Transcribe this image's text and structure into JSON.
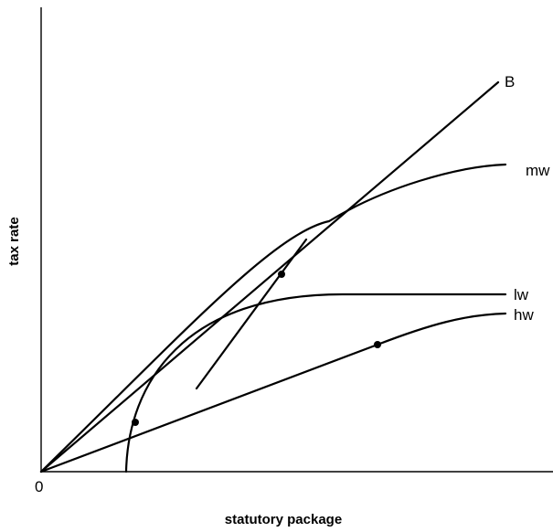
{
  "diagram": {
    "axes": {
      "x_label": "statutory package",
      "y_label": "tax rate",
      "origin_label": "0"
    },
    "curves": [
      {
        "id": "B",
        "label": "B"
      },
      {
        "id": "mw",
        "label": "mw"
      },
      {
        "id": "lw",
        "label": "lw"
      },
      {
        "id": "hw",
        "label": "hw"
      }
    ]
  }
}
